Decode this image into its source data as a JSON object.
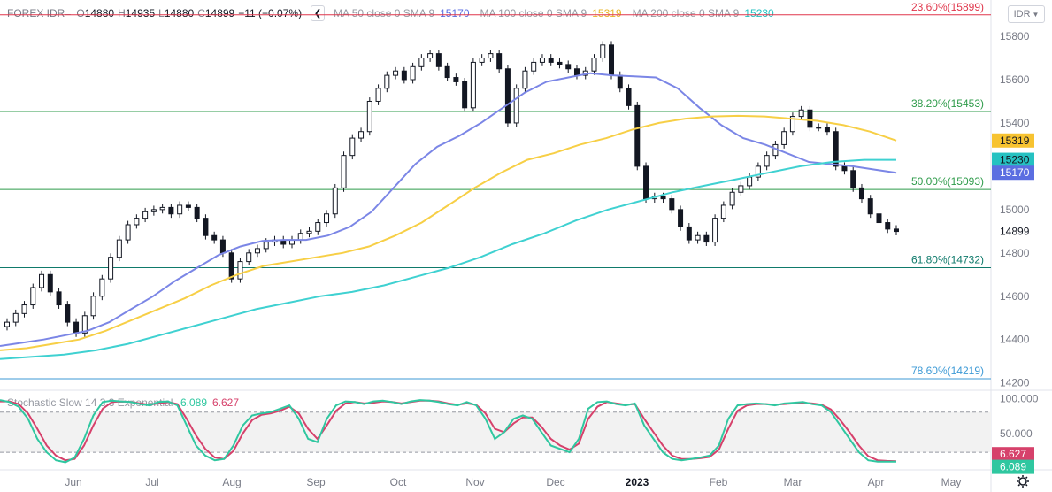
{
  "header": {
    "symbol": "FOREX IDR=",
    "o_label": "O",
    "o_val": "14880",
    "h_label": "H",
    "h_val": "14935",
    "l_label": "L",
    "l_val": "14880",
    "c_label": "C",
    "c_val": "14899",
    "change": "−11 (−0.07%)",
    "ma50_label": "MA 50 close 0 SMA 9",
    "ma50_val": "15170",
    "ma50_color": "#5b6ee1",
    "ma100_label": "MA 100 close 0 SMA 9",
    "ma100_val": "15319",
    "ma100_color": "#f2c94c",
    "ma200_label": "MA 200 close 0 SMA 9",
    "ma200_val": "15230",
    "ma200_color": "#25c1c1",
    "currency": "IDR",
    "collapse_icon": "chevron-left-icon",
    "currency_icon": "chevron-down-icon"
  },
  "chart_data": {
    "type": "candlestick",
    "title": "FOREX IDR=",
    "ylim": [
      14170,
      15935
    ],
    "yticks": [
      15800,
      15600,
      15400,
      15200,
      15000,
      14800,
      14600,
      14400,
      14200
    ],
    "months": [
      "Jun",
      "Jul",
      "Aug",
      "Sep",
      "Oct",
      "Nov",
      "Dec",
      "2023",
      "Feb",
      "Mar",
      "Apr",
      "May"
    ],
    "fib_levels": [
      {
        "label": "23.60%(15899)",
        "value": 15899,
        "color": "#e0374c"
      },
      {
        "label": "38.20%(15453)",
        "value": 15453,
        "color": "#2e9b4a"
      },
      {
        "label": "50.00%(15093)",
        "value": 15093,
        "color": "#2e9b4a"
      },
      {
        "label": "61.80%(14732)",
        "value": 14732,
        "color": "#0f7a6b"
      },
      {
        "label": "78.60%(14219)",
        "value": 14219,
        "color": "#3d9ad6"
      }
    ],
    "price_labels": [
      {
        "text": "15319",
        "value": 15319,
        "bg": "#f7c331",
        "fg": "#131722"
      },
      {
        "text": "15230",
        "value": 15230,
        "bg": "#25c1c1",
        "fg": "#131722"
      },
      {
        "text": "15170",
        "value": 15170,
        "bg": "#5b6ee1",
        "fg": "#ffffff"
      }
    ],
    "last_price": "14899",
    "close_series": [
      14480,
      14520,
      14560,
      14640,
      14700,
      14620,
      14560,
      14480,
      14430,
      14510,
      14600,
      14680,
      14780,
      14860,
      14930,
      14960,
      14990,
      15000,
      15010,
      14980,
      15020,
      15010,
      14960,
      14880,
      14860,
      14800,
      14680,
      14760,
      14800,
      14820,
      14850,
      14860,
      14840,
      14860,
      14890,
      14900,
      14940,
      14980,
      15100,
      15250,
      15330,
      15360,
      15500,
      15560,
      15620,
      15640,
      15600,
      15660,
      15700,
      15720,
      15660,
      15610,
      15590,
      15470,
      15680,
      15700,
      15720,
      15650,
      15400,
      15560,
      15640,
      15680,
      15700,
      15680,
      15670,
      15650,
      15620,
      15640,
      15700,
      15760,
      15620,
      15560,
      15480,
      15200,
      15050,
      15060,
      15050,
      15000,
      14920,
      14860,
      14880,
      14850,
      14960,
      15020,
      15080,
      15110,
      15150,
      15200,
      15250,
      15300,
      15360,
      15430,
      15460,
      15380,
      15380,
      15360,
      15200,
      15180,
      15100,
      15050,
      14980,
      14940,
      14910,
      14899
    ],
    "ma50": [
      14370,
      14385,
      14400,
      14420,
      14440,
      14480,
      14540,
      14600,
      14670,
      14730,
      14790,
      14830,
      14855,
      14860,
      14860,
      14880,
      14920,
      14990,
      15100,
      15210,
      15290,
      15340,
      15400,
      15470,
      15540,
      15590,
      15610,
      15630,
      15620,
      15615,
      15610,
      15560,
      15470,
      15390,
      15330,
      15300,
      15260,
      15220,
      15210,
      15200,
      15185,
      15170
    ],
    "ma100": [
      14350,
      14360,
      14380,
      14400,
      14440,
      14490,
      14540,
      14590,
      14650,
      14700,
      14740,
      14760,
      14780,
      14800,
      14830,
      14880,
      14940,
      15020,
      15100,
      15170,
      15230,
      15260,
      15300,
      15330,
      15370,
      15400,
      15420,
      15430,
      15433,
      15430,
      15420,
      15410,
      15390,
      15360,
      15319
    ],
    "ma200": [
      14310,
      14320,
      14330,
      14350,
      14380,
      14420,
      14460,
      14500,
      14540,
      14570,
      14600,
      14620,
      14650,
      14690,
      14730,
      14780,
      14840,
      14890,
      14950,
      15000,
      15040,
      15080,
      15110,
      15140,
      15170,
      15200,
      15220,
      15230,
      15230
    ],
    "stochastic": {
      "label": "Stochastic Slow 14 3 3 Exponential",
      "k_value": "6.089",
      "d_value": "6.627",
      "k_color": "#2fc7a0",
      "d_color": "#d6416b",
      "ylim": [
        -5,
        110
      ],
      "levels": [
        80,
        20
      ],
      "tick_label": "100.000",
      "mid_label": "50.000",
      "k_series": [
        98,
        95,
        88,
        70,
        40,
        20,
        8,
        5,
        12,
        40,
        75,
        95,
        97,
        96,
        95,
        92,
        90,
        95,
        96,
        90,
        60,
        30,
        15,
        8,
        10,
        30,
        60,
        75,
        78,
        80,
        85,
        90,
        70,
        40,
        35,
        70,
        90,
        96,
        95,
        92,
        96,
        97,
        95,
        92,
        96,
        98,
        97,
        95,
        92,
        90,
        95,
        90,
        70,
        40,
        50,
        70,
        75,
        70,
        50,
        30,
        25,
        20,
        40,
        85,
        95,
        96,
        92,
        90,
        93,
        60,
        40,
        20,
        10,
        8,
        10,
        12,
        15,
        30,
        70,
        90,
        92,
        93,
        92,
        90,
        93,
        94,
        95,
        92,
        90,
        80,
        60,
        40,
        20,
        8,
        6,
        6,
        6
      ],
      "d_series": [
        96,
        96,
        92,
        78,
        55,
        30,
        15,
        8,
        10,
        30,
        60,
        85,
        95,
        96,
        95,
        93,
        91,
        93,
        95,
        92,
        70,
        45,
        25,
        12,
        10,
        22,
        48,
        68,
        76,
        78,
        82,
        88,
        78,
        55,
        40,
        60,
        82,
        93,
        95,
        93,
        94,
        96,
        95,
        93,
        95,
        97,
        97,
        96,
        93,
        91,
        93,
        91,
        78,
        55,
        50,
        63,
        72,
        72,
        58,
        40,
        30,
        24,
        33,
        70,
        88,
        95,
        93,
        91,
        92,
        70,
        50,
        30,
        15,
        10,
        10,
        11,
        13,
        24,
        55,
        82,
        90,
        92,
        92,
        91,
        92,
        93,
        94,
        93,
        91,
        84,
        68,
        50,
        30,
        14,
        8,
        7,
        6.6
      ]
    }
  }
}
